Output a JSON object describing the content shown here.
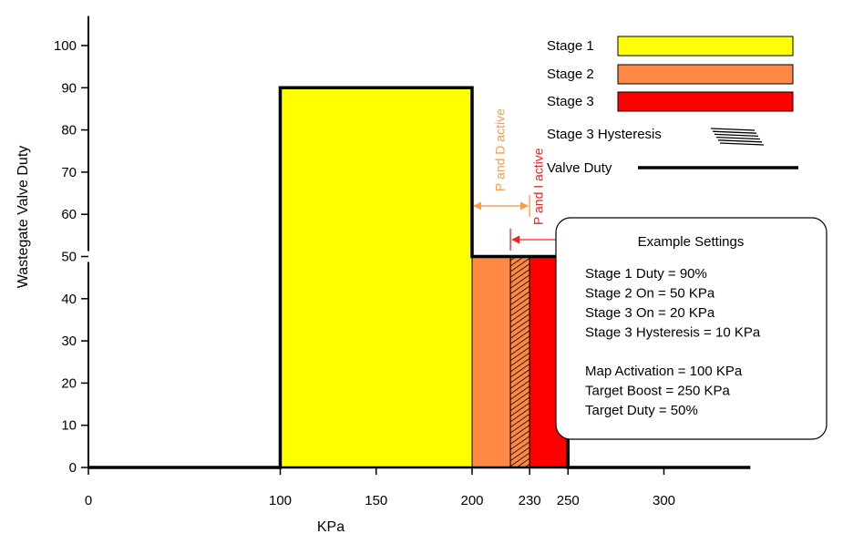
{
  "chart_data": {
    "type": "area",
    "title": "",
    "xlabel": "KPa",
    "ylabel": "Wastegate Valve Duty",
    "xlim": [
      0,
      345
    ],
    "ylim": [
      0,
      105
    ],
    "x_ticks": [
      {
        "value": 0,
        "label": "0"
      },
      {
        "value": 100,
        "label": "100"
      },
      {
        "value": 150,
        "label": "150"
      },
      {
        "value": 200,
        "label": "200"
      },
      {
        "value": 230,
        "label": "230"
      },
      {
        "value": 250,
        "label": "250"
      },
      {
        "value": 300,
        "label": "300"
      }
    ],
    "y_ticks": [
      {
        "value": 0,
        "label": "0"
      },
      {
        "value": 10,
        "label": "10"
      },
      {
        "value": 20,
        "label": "20"
      },
      {
        "value": 30,
        "label": "30"
      },
      {
        "value": 40,
        "label": "40"
      },
      {
        "value": 50,
        "label": "50"
      },
      {
        "value": 60,
        "label": "60"
      },
      {
        "value": 70,
        "label": "70"
      },
      {
        "value": 80,
        "label": "80"
      },
      {
        "value": 90,
        "label": "90"
      },
      {
        "value": 100,
        "label": "100"
      }
    ],
    "regions": [
      {
        "name": "Stage 1",
        "x0": 100,
        "x1": 200,
        "y": 90,
        "color": "#ffff00",
        "pattern": "solid"
      },
      {
        "name": "Stage 2",
        "x0": 200,
        "x1": 220,
        "y": 50,
        "color": "#ff8844",
        "pattern": "solid"
      },
      {
        "name": "Stage 3 Hysteresis",
        "x0": 220,
        "x1": 230,
        "y": 50,
        "color": "#ff8844",
        "pattern": "hatch"
      },
      {
        "name": "Stage 3",
        "x0": 230,
        "x1": 250,
        "y": 50,
        "color": "#ff0000",
        "pattern": "solid"
      }
    ],
    "valve_duty_line": {
      "name": "Valve Duty",
      "points": [
        [
          0,
          0
        ],
        [
          100,
          0
        ],
        [
          100,
          90
        ],
        [
          200,
          90
        ],
        [
          200,
          50
        ],
        [
          250,
          50
        ],
        [
          250,
          0
        ],
        [
          345,
          0
        ]
      ]
    },
    "annotations": [
      {
        "text": "P and D active",
        "x0": 200,
        "x1": 230,
        "y": 62,
        "color": "#ff9944"
      },
      {
        "text": "P and I active",
        "x0": 220,
        "x1": 250,
        "y": 54,
        "color": "#ee2222"
      }
    ],
    "legend": {
      "placement": "top-right",
      "entries": [
        {
          "label": "Stage 1",
          "type": "box",
          "color": "#ffff00"
        },
        {
          "label": "Stage 2",
          "type": "box",
          "color": "#ff8844"
        },
        {
          "label": "Stage 3",
          "type": "box",
          "color": "#ff0000"
        },
        {
          "label": "Stage 3 Hysteresis",
          "type": "hatch",
          "color": "#000000"
        },
        {
          "label": "Valve Duty",
          "type": "line",
          "color": "#000000"
        }
      ]
    },
    "settings_box": {
      "title": "Example Settings",
      "groups": [
        [
          "Stage 1 Duty = 90%",
          "Stage 2 On = 50 KPa",
          "Stage 3 On = 20 KPa",
          "Stage 3 Hysteresis = 10 KPa"
        ],
        [
          "Map Activation = 100 KPa",
          "Target Boost = 250 KPa",
          "Target Duty = 50%"
        ]
      ]
    },
    "grid": false
  }
}
